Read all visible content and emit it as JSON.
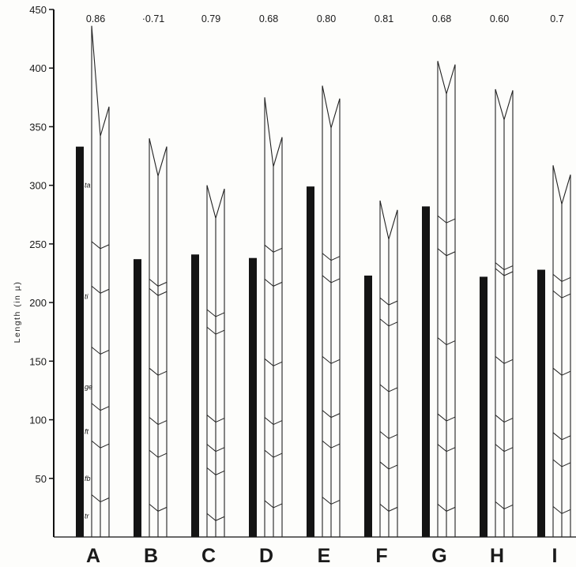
{
  "chart_data": {
    "type": "bar",
    "title": "",
    "xlabel": "",
    "ylabel": "Length (in µ)",
    "ylim": [
      0,
      450
    ],
    "yticks": [
      50,
      100,
      150,
      200,
      250,
      300,
      350,
      400,
      450
    ],
    "grid": false,
    "categories": [
      "A",
      "B",
      "C",
      "D",
      "E",
      "F",
      "G",
      "H",
      "I"
    ],
    "ratios": [
      "0.86",
      "·0.71",
      "0.79",
      "0.68",
      "0.80",
      "0.81",
      "0.68",
      "0.60",
      "0.7"
    ],
    "segment_labels": [
      "ta",
      "ti",
      "ge",
      "ft",
      "fb",
      "tr"
    ],
    "bar_lengths": [
      333,
      237,
      241,
      238,
      299,
      223,
      282,
      222,
      228
    ],
    "leg_lengths": {
      "strip1": [
        436,
        340,
        300,
        375,
        385,
        287,
        406,
        382,
        317
      ],
      "strip2": [
        367,
        333,
        297,
        341,
        374,
        279,
        403,
        381,
        309
      ]
    },
    "segment_boundaries": [
      [
        248,
        210,
        158,
        110,
        78,
        32
      ],
      [
        216,
        208,
        140,
        98,
        70,
        24
      ],
      [
        190,
        175,
        100,
        75,
        55,
        16
      ],
      [
        245,
        216,
        148,
        98,
        70,
        27
      ],
      [
        238,
        219,
        150,
        104,
        78,
        30
      ],
      [
        200,
        182,
        126,
        86,
        60,
        24
      ],
      [
        270,
        242,
        166,
        101,
        75,
        24
      ],
      [
        230,
        225,
        150,
        100,
        75,
        26
      ],
      [
        220,
        206,
        140,
        85,
        62,
        22
      ]
    ]
  }
}
